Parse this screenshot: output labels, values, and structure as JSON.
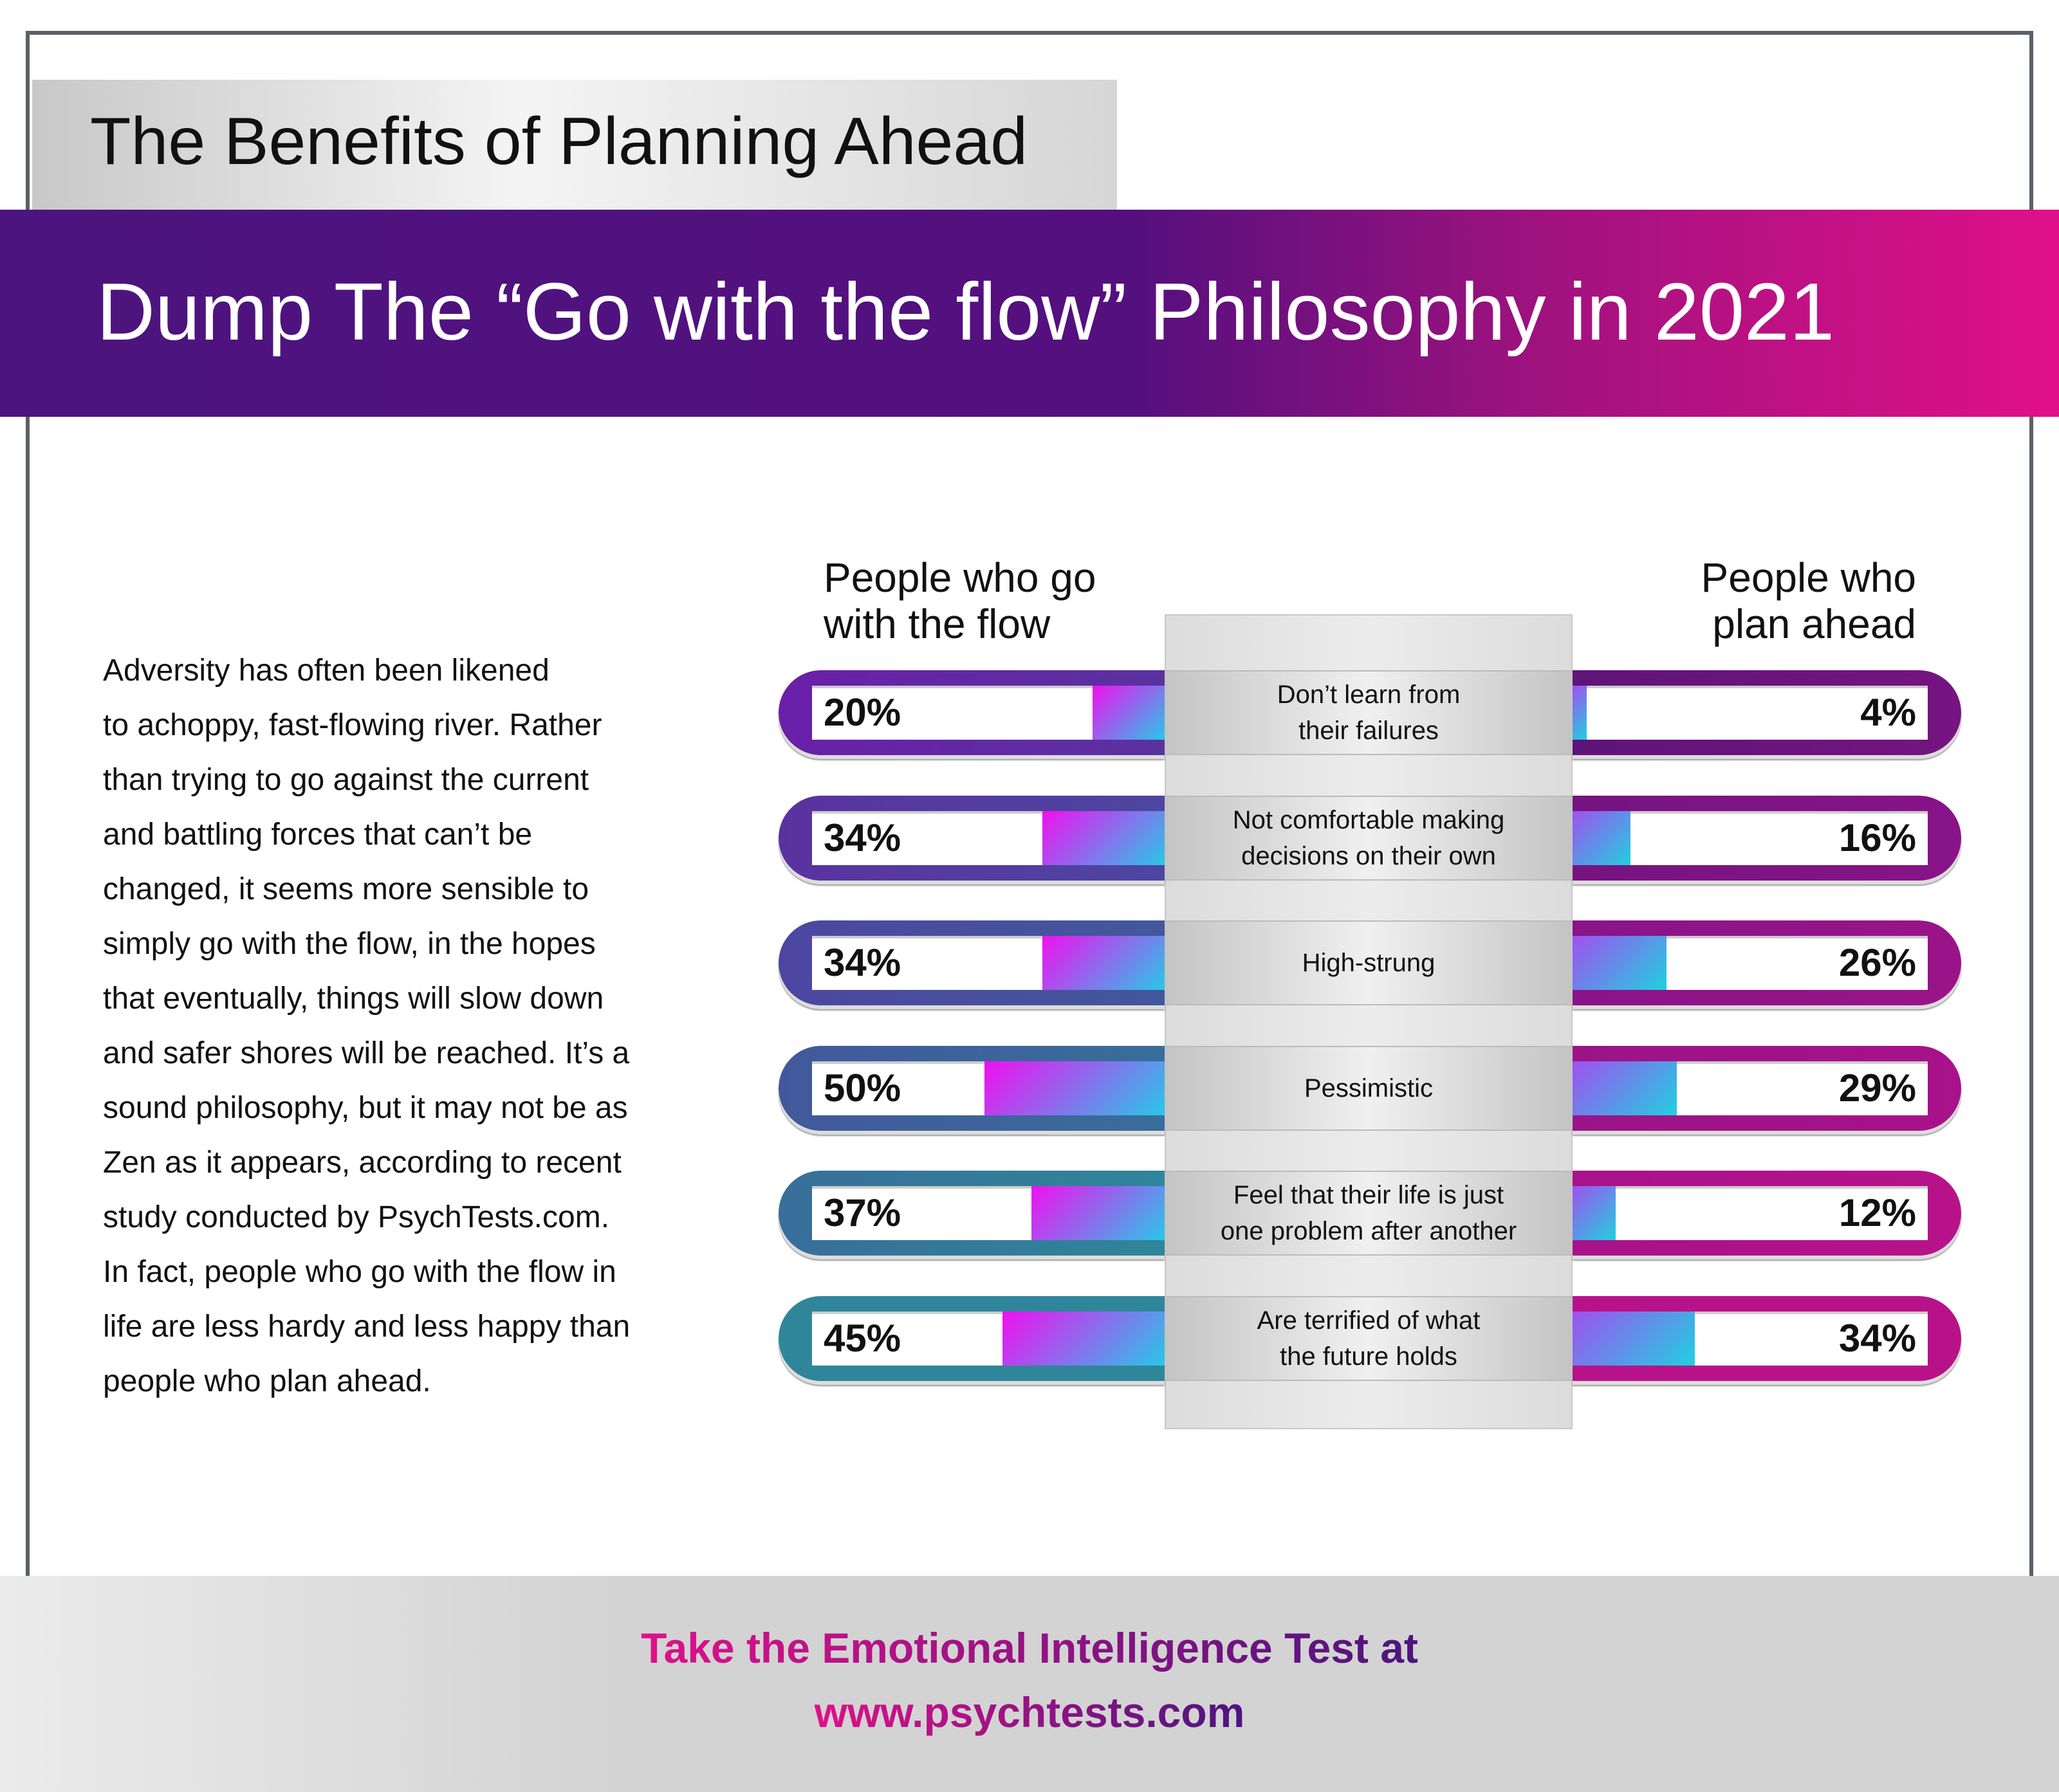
{
  "header": {
    "title": "The Benefits of Planning Ahead",
    "banner": "Dump The “Go with the flow” Philosophy in 2021"
  },
  "intro_lines": [
    "Adversity has often been likened",
    "to achoppy, fast-flowing river. Rather",
    "than trying to go against the current",
    "and battling forces that can’t be",
    "changed, it seems more sensible to",
    "simply go with the flow, in the hopes",
    "that eventually, things will slow down",
    "and safer shores will be reached. It’s a",
    "sound philosophy, but it may not be as",
    "Zen as it appears, according to recent",
    "study conducted by PsychTests.com.",
    "In fact, people who go with the flow in",
    "life are less hardy and less happy than",
    "people who plan ahead."
  ],
  "chart_data": {
    "type": "bar",
    "title": "Dump The “Go with the flow” Philosophy in 2021",
    "series": [
      {
        "name": "People who go with the flow",
        "name_lines": [
          "People who go",
          "with the flow"
        ],
        "values": [
          20,
          34,
          34,
          50,
          37,
          45
        ],
        "labels": [
          "20%",
          "34%",
          "34%",
          "50%",
          "37%",
          "45%"
        ]
      },
      {
        "name": "People who plan ahead",
        "name_lines": [
          "People who",
          "plan ahead"
        ],
        "values": [
          4,
          16,
          26,
          29,
          12,
          34
        ],
        "labels": [
          "4%",
          "16%",
          "26%",
          "29%",
          "12%",
          "34%"
        ]
      }
    ],
    "categories": [
      [
        "Don’t learn from",
        "their failures"
      ],
      [
        "Not comfortable making",
        "decisions on their own"
      ],
      [
        "High-strung"
      ],
      [
        "Pessimistic"
      ],
      [
        "Feel that their life is just",
        "one problem after another"
      ],
      [
        "Are terrified of what",
        "the future holds"
      ]
    ],
    "ylim": [
      0,
      100
    ],
    "left_colors": [
      "#6a1fa8",
      "#5a32a0",
      "#4d46a0",
      "#42589c",
      "#386e9a",
      "#2f869a"
    ],
    "right_colors": [
      "#5e1478",
      "#761480",
      "#881488",
      "#9a1488",
      "#a8128a",
      "#b8128a"
    ]
  },
  "footer": {
    "line1": "Take the Emotional Intelligence Test at",
    "line2": "www.psychtests.com"
  }
}
